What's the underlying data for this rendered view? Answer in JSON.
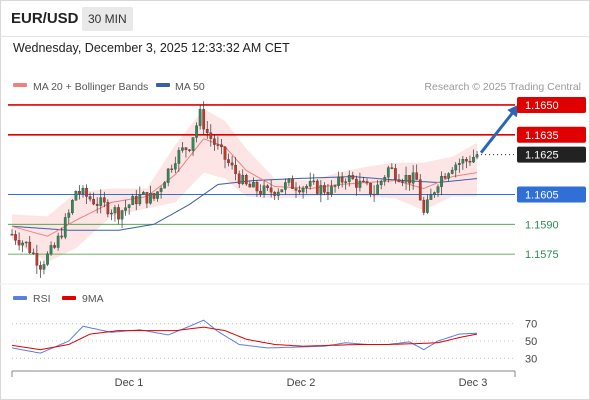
{
  "header": {
    "symbol": "EUR/USD",
    "interval": "30 MIN",
    "timestamp": "Wednesday, December 3, 2025 12:33:32 AM CET",
    "credit": "Research © 2025 Trading Central"
  },
  "colors": {
    "resistance": "#e00000",
    "current": "#222222",
    "support_blue": "#2f6fd6",
    "support_green": "#3a9d3a",
    "ma20": "#f08080",
    "bollinger_fill": "#fde0e0",
    "ma50": "#3b5ea8",
    "bull_candle": "#2e8b57",
    "bear_candle": "#c0392b",
    "arrow": "#2a66b8",
    "rsi": "#5b7fe0",
    "rsi_ma": "#e00000"
  },
  "chart_data": [
    {
      "type": "candlestick",
      "title": "EUR/USD",
      "timeframe": "30 MIN",
      "x_ticks": [
        "Dec 1",
        "Dec 2",
        "Dec 3"
      ],
      "ylim": [
        1.1562,
        1.1654
      ],
      "legend": [
        {
          "label": "MA 20 + Bollinger Bands",
          "color": "#f08080"
        },
        {
          "label": "MA 50",
          "color": "#3b5ea8"
        }
      ],
      "levels": [
        {
          "value": 1.165,
          "label": "1.1650",
          "kind": "resistance",
          "style": "box"
        },
        {
          "value": 1.1635,
          "label": "1.1635",
          "kind": "resistance",
          "style": "box"
        },
        {
          "value": 1.1625,
          "label": "1.1625",
          "kind": "current",
          "style": "box"
        },
        {
          "value": 1.1605,
          "label": "1.1605",
          "kind": "support_blue",
          "style": "box"
        },
        {
          "value": 1.159,
          "label": "1.1590",
          "kind": "support_green",
          "style": "plain"
        },
        {
          "value": 1.1575,
          "label": "1.1575",
          "kind": "support_green",
          "style": "plain"
        }
      ],
      "close_path": [
        [
          0,
          1.1585
        ],
        [
          4,
          1.158
        ],
        [
          8,
          1.157
        ],
        [
          12,
          1.1578
        ],
        [
          16,
          1.1595
        ],
        [
          18,
          1.1607
        ],
        [
          24,
          1.1601
        ],
        [
          30,
          1.1596
        ],
        [
          36,
          1.1604
        ],
        [
          40,
          1.1603
        ],
        [
          46,
          1.1624
        ],
        [
          50,
          1.163
        ],
        [
          53,
          1.1645
        ],
        [
          55,
          1.1636
        ],
        [
          58,
          1.1628
        ],
        [
          62,
          1.1618
        ],
        [
          66,
          1.1609
        ],
        [
          72,
          1.1606
        ],
        [
          78,
          1.161
        ],
        [
          84,
          1.1609
        ],
        [
          90,
          1.1607
        ],
        [
          94,
          1.1614
        ],
        [
          98,
          1.161
        ],
        [
          102,
          1.1606
        ],
        [
          106,
          1.1618
        ],
        [
          110,
          1.1614
        ],
        [
          114,
          1.1612
        ],
        [
          116,
          1.1595
        ],
        [
          120,
          1.1612
        ],
        [
          124,
          1.162
        ],
        [
          128,
          1.1622
        ],
        [
          131,
          1.1625
        ]
      ],
      "ma20": [
        [
          0,
          1.1589
        ],
        [
          10,
          1.1584
        ],
        [
          18,
          1.1592
        ],
        [
          28,
          1.1601
        ],
        [
          38,
          1.1604
        ],
        [
          46,
          1.1615
        ],
        [
          54,
          1.1633
        ],
        [
          60,
          1.1629
        ],
        [
          66,
          1.1617
        ],
        [
          74,
          1.1609
        ],
        [
          84,
          1.1608
        ],
        [
          92,
          1.161
        ],
        [
          100,
          1.1611
        ],
        [
          108,
          1.1612
        ],
        [
          116,
          1.1608
        ],
        [
          124,
          1.1614
        ],
        [
          131,
          1.1616
        ]
      ],
      "bollinger_upper": [
        [
          0,
          1.1595
        ],
        [
          10,
          1.1594
        ],
        [
          18,
          1.1606
        ],
        [
          28,
          1.1608
        ],
        [
          38,
          1.1608
        ],
        [
          46,
          1.163
        ],
        [
          54,
          1.1648
        ],
        [
          60,
          1.1642
        ],
        [
          66,
          1.1628
        ],
        [
          74,
          1.1613
        ],
        [
          84,
          1.1612
        ],
        [
          92,
          1.1616
        ],
        [
          100,
          1.1619
        ],
        [
          108,
          1.1621
        ],
        [
          116,
          1.1621
        ],
        [
          124,
          1.1624
        ],
        [
          131,
          1.1631
        ]
      ],
      "bollinger_lower": [
        [
          0,
          1.1582
        ],
        [
          10,
          1.1571
        ],
        [
          18,
          1.1578
        ],
        [
          28,
          1.1594
        ],
        [
          38,
          1.1598
        ],
        [
          46,
          1.1601
        ],
        [
          54,
          1.1616
        ],
        [
          60,
          1.1613
        ],
        [
          66,
          1.1604
        ],
        [
          74,
          1.1603
        ],
        [
          84,
          1.1604
        ],
        [
          92,
          1.1605
        ],
        [
          100,
          1.1604
        ],
        [
          108,
          1.1603
        ],
        [
          116,
          1.1597
        ],
        [
          124,
          1.1604
        ],
        [
          131,
          1.1604
        ]
      ],
      "ma50": [
        [
          0,
          1.1589
        ],
        [
          16,
          1.1587
        ],
        [
          30,
          1.1587
        ],
        [
          40,
          1.159
        ],
        [
          50,
          1.16
        ],
        [
          58,
          1.161
        ],
        [
          68,
          1.1612
        ],
        [
          80,
          1.1613
        ],
        [
          96,
          1.1614
        ],
        [
          110,
          1.1612
        ],
        [
          120,
          1.1611
        ],
        [
          131,
          1.1613
        ]
      ],
      "projection": {
        "from": [
          131,
          1.1625
        ],
        "to": [
          143,
          1.165
        ]
      }
    },
    {
      "type": "line",
      "title": "RSI",
      "legend": [
        {
          "label": "RSI",
          "color": "#5b7fe0"
        },
        {
          "label": "9MA",
          "color": "#e00000"
        }
      ],
      "ylim": [
        20,
        80
      ],
      "y_ticks": [
        70,
        50,
        30
      ],
      "series": [
        {
          "name": "RSI",
          "points": [
            [
              0,
              42
            ],
            [
              8,
              36
            ],
            [
              16,
              50
            ],
            [
              20,
              67
            ],
            [
              28,
              60
            ],
            [
              36,
              63
            ],
            [
              44,
              57
            ],
            [
              50,
              67
            ],
            [
              54,
              74
            ],
            [
              58,
              61
            ],
            [
              64,
              46
            ],
            [
              72,
              42
            ],
            [
              80,
              43
            ],
            [
              88,
              44
            ],
            [
              94,
              48
            ],
            [
              100,
              46
            ],
            [
              106,
              46
            ],
            [
              112,
              49
            ],
            [
              116,
              40
            ],
            [
              120,
              50
            ],
            [
              126,
              58
            ],
            [
              131,
              59
            ]
          ]
        },
        {
          "name": "9MA",
          "points": [
            [
              0,
              45
            ],
            [
              8,
              40
            ],
            [
              16,
              46
            ],
            [
              22,
              58
            ],
            [
              30,
              62
            ],
            [
              38,
              62
            ],
            [
              46,
              62
            ],
            [
              54,
              66
            ],
            [
              60,
              62
            ],
            [
              66,
              52
            ],
            [
              74,
              46
            ],
            [
              82,
              44
            ],
            [
              90,
              45
            ],
            [
              98,
              46
            ],
            [
              106,
              46
            ],
            [
              114,
              47
            ],
            [
              120,
              48
            ],
            [
              126,
              54
            ],
            [
              131,
              58
            ]
          ]
        }
      ]
    }
  ]
}
